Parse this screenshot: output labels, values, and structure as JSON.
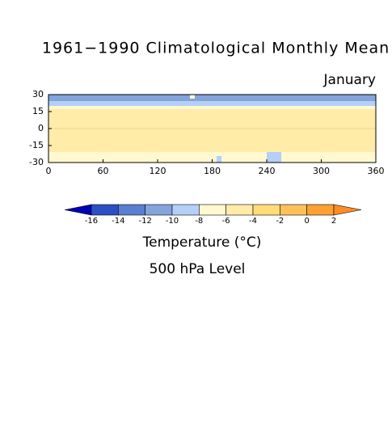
{
  "title": "1961−1990 Climatological Monthly Mean",
  "subtitle": "January",
  "map": {
    "xlim": [
      0,
      360
    ],
    "ylim": [
      -30,
      30
    ],
    "xticks": [
      0,
      60,
      120,
      180,
      240,
      300,
      360
    ],
    "yticks": [
      30,
      15,
      0,
      -15,
      -30
    ]
  },
  "colorbar": {
    "levels": [
      -16,
      -14,
      -12,
      -10,
      -8,
      -6,
      -4,
      -2,
      0,
      2
    ],
    "colors": [
      "#0000b4",
      "#2a50c4",
      "#5a7ed0",
      "#84a4dc",
      "#b4d0f8",
      "#fff8d0",
      "#ffeca8",
      "#ffdc78",
      "#ffc058",
      "#ffa030",
      "#ff8c28"
    ]
  },
  "caption": [
    "Temperature (°C)",
    "500 hPa Level"
  ]
}
